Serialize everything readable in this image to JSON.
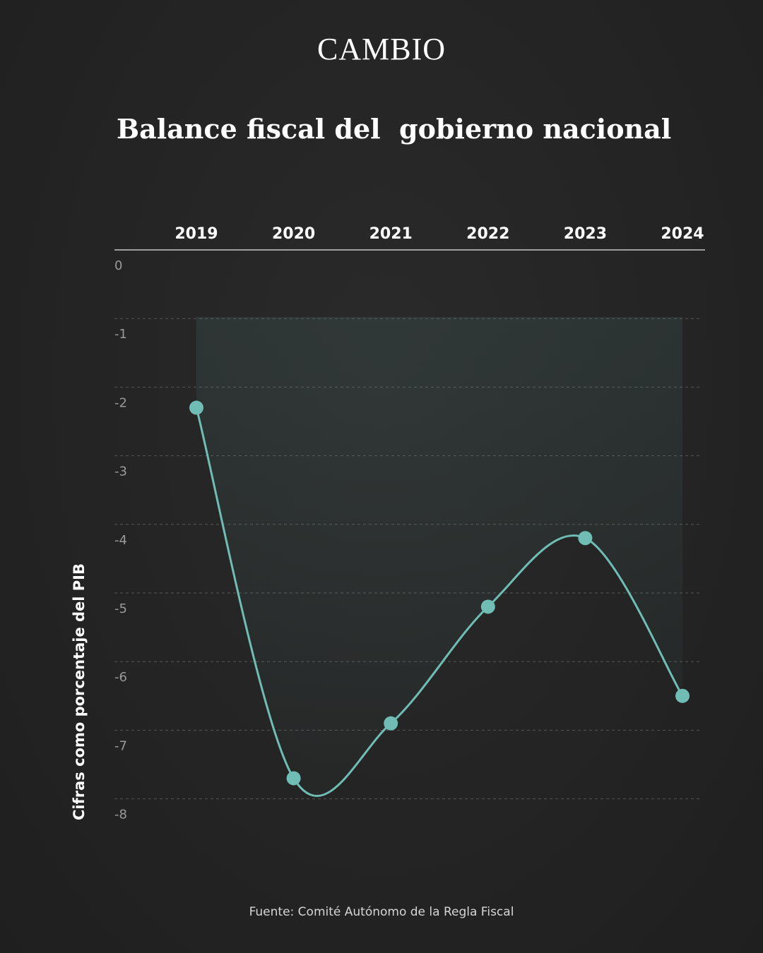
{
  "brand": "CAMBIO",
  "source": "Fuente: Comité Autónomo de la Regla Fiscal",
  "colors": {
    "background": "#232323",
    "line": "#6fbdb5",
    "marker": "#6fbdb5",
    "text": "#ffffff",
    "tick_text": "#9a9a9a",
    "grid": "#555555"
  },
  "chart_data": {
    "type": "line",
    "title": "Balance fiscal del  gobierno nacional",
    "ylabel": "Cifras como porcentaje del PIB",
    "xlabel": "",
    "x_axis_position": "top",
    "categories": [
      "2019",
      "2020",
      "2021",
      "2022",
      "2023",
      "2024"
    ],
    "values": [
      -2.3,
      -7.7,
      -6.9,
      -5.2,
      -4.2,
      -6.5
    ],
    "ylim": [
      -8,
      0
    ],
    "yticks": [
      0,
      -1,
      -2,
      -3,
      -4,
      -5,
      -6,
      -7,
      -8
    ],
    "grid": "horizontal dashed",
    "smooth": true,
    "area_fill": true
  }
}
